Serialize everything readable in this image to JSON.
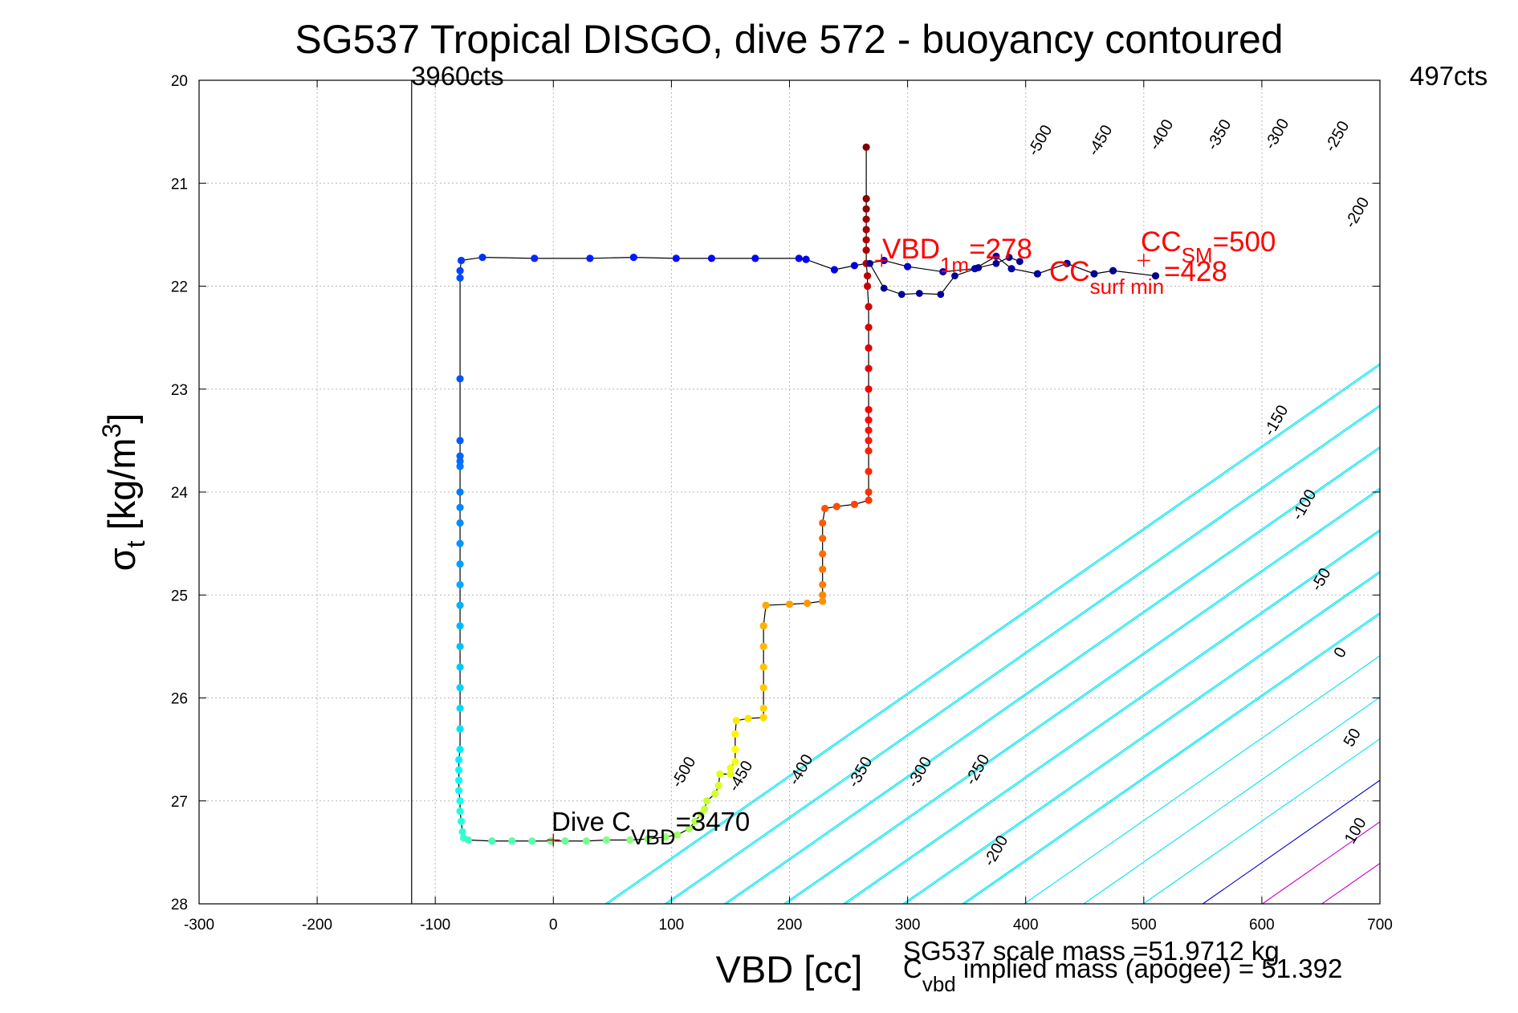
{
  "chart_data": {
    "type": "scatter",
    "title": "SG537 Tropical DISGO, dive 572 - buoyancy contoured",
    "xlabel": "VBD [cc]",
    "ylabel": {
      "main": "σ",
      "sub": "t",
      "unit_pre": " [kg/m",
      "unit_sup": "3",
      "unit_post": "]"
    },
    "xlim": [
      -300,
      700
    ],
    "ylim": [
      20,
      28
    ],
    "y_reversed": true,
    "xticks": [
      -300,
      -200,
      -100,
      0,
      100,
      200,
      300,
      400,
      500,
      600,
      700
    ],
    "yticks": [
      20,
      21,
      22,
      23,
      24,
      25,
      26,
      27,
      28
    ],
    "grid": true,
    "colors": {
      "contour_neg": "#00e5ee",
      "contour_zero": "#0000cc",
      "contour_pos": "#cc00cc",
      "text_red": "#ff0000",
      "trace": "#000000"
    },
    "annotations": {
      "left_counts": "3960cts",
      "left_counts_x": -120,
      "right_counts": "497cts",
      "vbd_1m": {
        "main": "VBD",
        "sub": "1m",
        "value": "=278",
        "x": 278,
        "y": 21.75
      },
      "cc_sm": {
        "main": "CC",
        "sub": "SM",
        "value": "=500",
        "x": 500,
        "y": 21.75
      },
      "cc_surf": {
        "main": "CC",
        "sub": "surf min",
        "value": "=428",
        "x": 428,
        "y": 21.88
      },
      "dive_c": {
        "main": "Dive C",
        "sub": "VBD",
        "value": "=3470",
        "x": 0,
        "y": 27.38
      },
      "scale_mass": "SG537 scale mass =51.9712 kg",
      "implied_mass": {
        "main": "C",
        "sub": "vbd",
        "rest": " implied mass (apogee) = 51.392"
      }
    },
    "contours_upper": [
      {
        "value": -500,
        "label": "-500"
      },
      {
        "value": -450,
        "label": "-450"
      },
      {
        "value": -400,
        "label": "-400"
      },
      {
        "value": -350,
        "label": "-350"
      },
      {
        "value": -300,
        "label": "-300"
      },
      {
        "value": -250,
        "label": "-250"
      },
      {
        "value": -200,
        "label": "-200"
      },
      {
        "value": -150,
        "label": "-150"
      },
      {
        "value": -100,
        "label": "-100"
      },
      {
        "value": -50,
        "label": "-50"
      },
      {
        "value": 0,
        "label": "0"
      },
      {
        "value": 50,
        "label": "50"
      },
      {
        "value": 100,
        "label": "100"
      }
    ],
    "contours_lower": [
      {
        "value": -500,
        "label": "-500"
      },
      {
        "value": -450,
        "label": "-450"
      },
      {
        "value": -400,
        "label": "-400"
      },
      {
        "value": -350,
        "label": "-350"
      },
      {
        "value": -300,
        "label": "-300"
      },
      {
        "value": -250,
        "label": "-250"
      },
      {
        "value": -200,
        "label": "-200"
      }
    ],
    "series": [
      {
        "name": "dive",
        "points": [
          [
            265,
            20.65
          ],
          [
            265,
            21.15
          ],
          [
            265,
            21.25
          ],
          [
            265,
            21.35
          ],
          [
            265,
            21.45
          ],
          [
            265,
            21.55
          ],
          [
            265,
            21.65
          ],
          [
            265,
            21.78
          ],
          [
            266,
            21.9
          ],
          [
            266,
            22.0
          ],
          [
            267,
            22.2
          ],
          [
            267,
            22.4
          ],
          [
            267,
            22.6
          ],
          [
            267,
            22.8
          ],
          [
            267,
            23.0
          ],
          [
            267,
            23.2
          ],
          [
            267,
            23.3
          ],
          [
            267,
            23.4
          ],
          [
            267,
            23.5
          ],
          [
            267,
            23.6
          ],
          [
            267,
            23.8
          ],
          [
            267,
            24.0
          ],
          [
            267,
            24.08
          ],
          [
            255,
            24.12
          ],
          [
            240,
            24.14
          ],
          [
            230,
            24.16
          ],
          [
            228,
            24.3
          ],
          [
            228,
            24.45
          ],
          [
            228,
            24.6
          ],
          [
            228,
            24.75
          ],
          [
            228,
            24.9
          ],
          [
            228,
            25.0
          ],
          [
            228,
            25.06
          ],
          [
            215,
            25.08
          ],
          [
            200,
            25.09
          ],
          [
            180,
            25.1
          ],
          [
            178,
            25.3
          ],
          [
            178,
            25.5
          ],
          [
            178,
            25.7
          ],
          [
            178,
            25.9
          ],
          [
            178,
            26.1
          ],
          [
            178,
            26.19
          ],
          [
            165,
            26.2
          ],
          [
            155,
            26.22
          ],
          [
            154,
            26.35
          ],
          [
            154,
            26.5
          ],
          [
            154,
            26.62
          ],
          [
            150,
            26.68
          ],
          [
            150,
            26.74
          ],
          [
            141,
            26.74
          ],
          [
            140,
            26.85
          ],
          [
            137,
            26.93
          ],
          [
            130,
            27.0
          ],
          [
            128,
            27.08
          ],
          [
            125,
            27.13
          ],
          [
            120,
            27.2
          ],
          [
            115,
            27.27
          ],
          [
            105,
            27.33
          ],
          [
            95,
            27.35
          ],
          [
            80,
            27.37
          ],
          [
            65,
            27.38
          ],
          [
            45,
            27.38
          ],
          [
            28,
            27.39
          ],
          [
            10,
            27.39
          ],
          [
            -2,
            27.39
          ],
          [
            -18,
            27.39
          ],
          [
            -35,
            27.39
          ],
          [
            -52,
            27.39
          ],
          [
            -72,
            27.38
          ],
          [
            -76,
            27.36
          ],
          [
            -77,
            27.3
          ],
          [
            -78,
            27.2
          ],
          [
            -79,
            27.1
          ],
          [
            -79,
            27.0
          ],
          [
            -80,
            26.9
          ],
          [
            -80,
            26.8
          ],
          [
            -80,
            26.7
          ],
          [
            -80,
            26.6
          ],
          [
            -79,
            26.5
          ],
          [
            -79,
            26.3
          ],
          [
            -79,
            26.1
          ],
          [
            -79,
            25.9
          ],
          [
            -79,
            25.7
          ],
          [
            -79,
            25.5
          ],
          [
            -79,
            25.3
          ],
          [
            -79,
            25.1
          ],
          [
            -79,
            24.9
          ],
          [
            -79,
            24.7
          ],
          [
            -79,
            24.5
          ],
          [
            -79,
            24.3
          ],
          [
            -79,
            24.15
          ],
          [
            -79,
            24.0
          ],
          [
            -79,
            23.75
          ],
          [
            -79,
            23.7
          ],
          [
            -79,
            23.65
          ],
          [
            -79,
            23.5
          ],
          [
            -79,
            22.9
          ],
          [
            -79,
            21.92
          ],
          [
            -79,
            21.85
          ],
          [
            -78,
            21.75
          ],
          [
            -60,
            21.72
          ],
          [
            -16,
            21.73
          ],
          [
            31,
            21.73
          ],
          [
            68,
            21.72
          ],
          [
            104,
            21.73
          ],
          [
            134,
            21.73
          ],
          [
            171,
            21.73
          ],
          [
            208,
            21.73
          ],
          [
            214,
            21.74
          ],
          [
            238,
            21.84
          ],
          [
            255,
            21.8
          ],
          [
            280,
            21.75
          ],
          [
            300,
            21.81
          ],
          [
            330,
            21.86
          ],
          [
            357,
            21.83
          ],
          [
            375,
            21.71
          ],
          [
            388,
            21.83
          ],
          [
            410,
            21.88
          ],
          [
            435,
            21.78
          ],
          [
            458,
            21.88
          ],
          [
            474,
            21.85
          ],
          [
            510,
            21.9
          ]
        ],
        "ascent_loop": [
          [
            268,
            21.78
          ],
          [
            280,
            22.02
          ],
          [
            295,
            22.08
          ],
          [
            310,
            22.07
          ],
          [
            328,
            22.08
          ],
          [
            340,
            21.9
          ],
          [
            360,
            21.82
          ],
          [
            375,
            21.78
          ],
          [
            386,
            21.72
          ],
          [
            395,
            21.76
          ]
        ]
      }
    ]
  }
}
